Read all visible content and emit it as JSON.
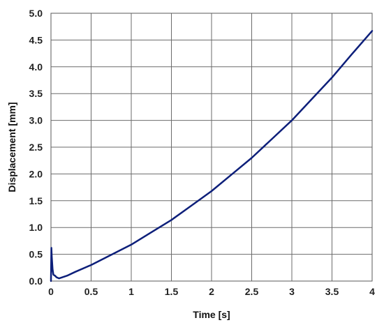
{
  "chart_data": {
    "type": "line",
    "title": "",
    "xlabel": "Time [s]",
    "ylabel": "Displacement [mm]",
    "xlim": [
      0,
      4
    ],
    "ylim": [
      0,
      5
    ],
    "x_ticks": [
      "0",
      "0.5",
      "1",
      "1.5",
      "2",
      "2.5",
      "3",
      "3.5",
      "4"
    ],
    "x_tick_values": [
      0,
      0.5,
      1,
      1.5,
      2,
      2.5,
      3,
      3.5,
      4
    ],
    "y_ticks": [
      "0.0",
      "0.5",
      "1.0",
      "1.5",
      "2.0",
      "2.5",
      "3.0",
      "3.5",
      "4.0",
      "4.5",
      "5.0"
    ],
    "y_tick_values": [
      0,
      0.5,
      1,
      1.5,
      2,
      2.5,
      3,
      3.5,
      4,
      4.5,
      5
    ],
    "grid": true,
    "legend": "none",
    "series": [
      {
        "color": "#0d1f7a",
        "x": [
          0.0,
          0.005,
          0.01,
          0.02,
          0.03,
          0.05,
          0.07,
          0.1,
          0.2,
          0.3,
          0.5,
          0.75,
          1.0,
          1.25,
          1.5,
          1.75,
          2.0,
          2.25,
          2.5,
          2.75,
          3.0,
          3.25,
          3.5,
          3.75,
          4.0
        ],
        "y": [
          0.0,
          0.62,
          0.45,
          0.22,
          0.12,
          0.1,
          0.07,
          0.05,
          0.1,
          0.17,
          0.3,
          0.49,
          0.68,
          0.91,
          1.14,
          1.41,
          1.68,
          1.99,
          2.3,
          2.65,
          3.0,
          3.4,
          3.8,
          4.24,
          4.67
        ]
      }
    ]
  }
}
